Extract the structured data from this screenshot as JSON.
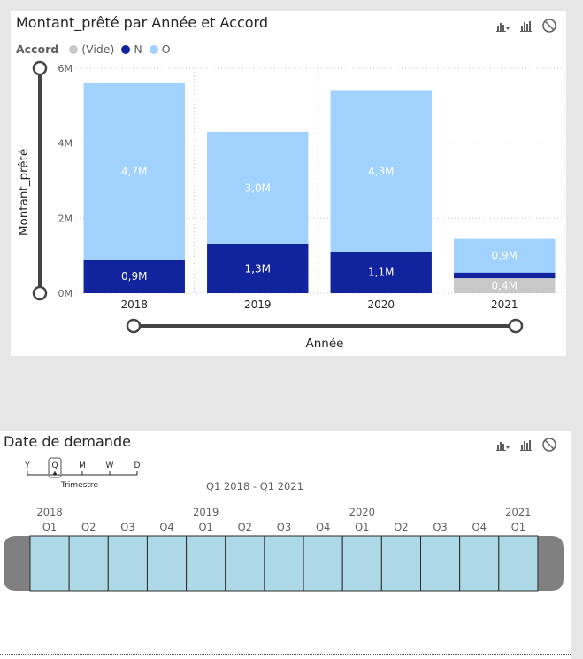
{
  "chart_card": {
    "title": "Montant_prêté par Année et Accord",
    "icons": [
      "drill-down-icon",
      "focus-mode-icon",
      "no-filter-icon"
    ],
    "legend": {
      "title": "Accord",
      "items": [
        {
          "label": "(Vide)",
          "color": "#c8c8c8"
        },
        {
          "label": "N",
          "color": "#12239e"
        },
        {
          "label": "O",
          "color": "#a0d1ff"
        }
      ]
    }
  },
  "chart_data": {
    "type": "bar",
    "stacked": true,
    "categories": [
      "2018",
      "2019",
      "2020",
      "2021"
    ],
    "series": [
      {
        "name": "(Vide)",
        "color": "#c8c8c8",
        "values": [
          0,
          0,
          0,
          0.4
        ],
        "labels": [
          "",
          "",
          "",
          "0,4M"
        ]
      },
      {
        "name": "N",
        "color": "#12239e",
        "values": [
          0.9,
          1.3,
          1.1,
          0.15
        ],
        "labels": [
          "0,9M",
          "1,3M",
          "1,1M",
          ""
        ]
      },
      {
        "name": "O",
        "color": "#a0d1ff",
        "values": [
          4.7,
          3.0,
          4.3,
          0.9
        ],
        "labels": [
          "4,7M",
          "3,0M",
          "4,3M",
          "0,9M"
        ]
      }
    ],
    "xlabel": "Année",
    "ylabel": "Montant_prêté",
    "ylim": [
      0,
      6
    ],
    "yticks": [
      {
        "value": 0,
        "label": "0M"
      },
      {
        "value": 2,
        "label": "2M"
      },
      {
        "value": 4,
        "label": "4M"
      },
      {
        "value": 6,
        "label": "6M"
      }
    ],
    "grid": true
  },
  "timeline": {
    "title": "Date de demande",
    "icons": [
      "drill-down-icon",
      "focus-mode-icon",
      "no-filter-icon"
    ],
    "granularity": {
      "options": [
        "Y",
        "Q",
        "M",
        "W",
        "D"
      ],
      "selected": "Q",
      "selected_label": "Trimestre"
    },
    "range_label": "Q1 2018 - Q1 2021",
    "years": [
      {
        "label": "2018",
        "at": 0
      },
      {
        "label": "2019",
        "at": 4
      },
      {
        "label": "2020",
        "at": 8
      },
      {
        "label": "2021",
        "at": 12
      }
    ],
    "quarters": [
      "Q1",
      "Q2",
      "Q3",
      "Q4",
      "Q1",
      "Q2",
      "Q3",
      "Q4",
      "Q1",
      "Q2",
      "Q3",
      "Q4",
      "Q1"
    ],
    "selected_range": [
      0,
      12
    ],
    "cell_color": "#add8e6",
    "handle_color": "#808080"
  }
}
